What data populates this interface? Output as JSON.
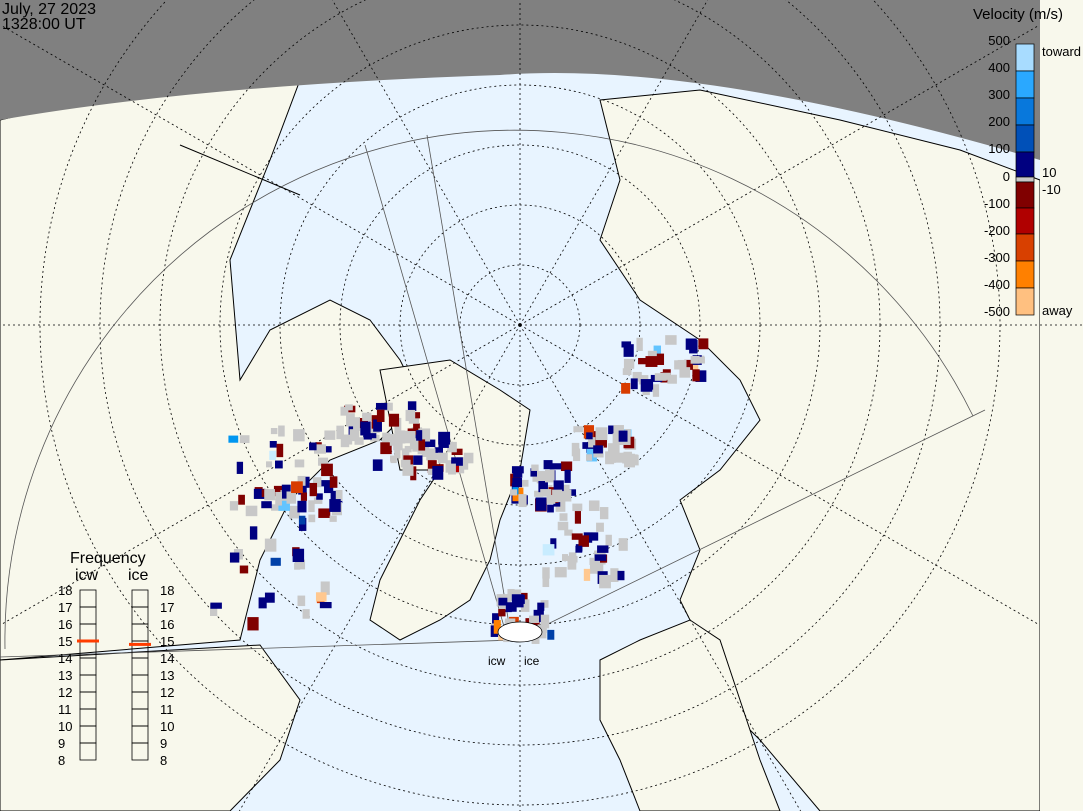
{
  "header": {
    "date": "July, 27 2023",
    "time": "1328:00 UT"
  },
  "colorbar": {
    "title": "Velocity (m/s)",
    "ticks": [
      "500",
      "400",
      "300",
      "200",
      "100",
      "0",
      "-100",
      "-200",
      "-300",
      "-400",
      "-500"
    ],
    "label_toward": "toward",
    "label_away": "away",
    "label_pos_threshold": "10",
    "label_neg_threshold": "-10",
    "colors": [
      "#c8ecff",
      "#62c4ff",
      "#0096f0",
      "#0068d0",
      "#0040a8",
      "#000080",
      "#c8c8c8",
      "#800000",
      "#b40000",
      "#d83c00",
      "#ff8000",
      "#ffc890"
    ]
  },
  "frequency": {
    "title": "Frequency",
    "radars": [
      {
        "name": "icw",
        "value_mhz": 15.0
      },
      {
        "name": "ice",
        "value_mhz": 14.8
      }
    ],
    "ticks": [
      "18",
      "17",
      "16",
      "15",
      "14",
      "13",
      "12",
      "11",
      "10",
      "9",
      "8"
    ],
    "marker_color": "#ff3c00"
  },
  "radar_labels": [
    "icw",
    "ice"
  ],
  "colors": {
    "ocean": "#e8f4ff",
    "land": "#f8f8ec",
    "night": "#808080"
  }
}
